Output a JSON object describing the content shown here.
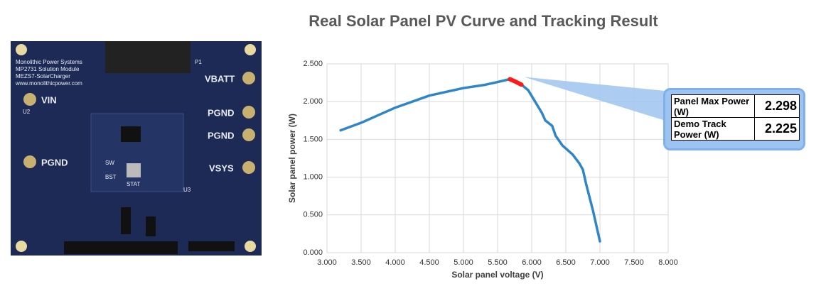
{
  "board_labels": [
    "Monolithic Power Systems",
    "MP2731 Solution Module",
    "MEZS7-SolarCharger",
    "www.monolithicpower.com",
    "VIN",
    "PGND",
    "VBATT",
    "PGND",
    "PGND",
    "VSYS",
    "P1",
    "U2",
    "U3",
    "STAT",
    "SW",
    "BST"
  ],
  "chart_data": {
    "type": "line",
    "title": "Real Solar Panel PV Curve and Tracking Result",
    "xlabel": "Solar panel voltage (V)",
    "ylabel": "Solar panel power (W)",
    "series": [
      {
        "name": "PV curve",
        "color": "#2e86c8",
        "x": [
          3.2,
          3.5,
          4.0,
          4.5,
          5.0,
          5.3,
          5.5,
          5.68,
          5.85,
          5.95,
          6.05,
          6.15,
          6.2,
          6.3,
          6.35,
          6.45,
          6.6,
          6.7,
          6.75,
          6.8,
          6.9,
          7.0
        ],
        "values": [
          1.62,
          1.72,
          1.92,
          2.08,
          2.18,
          2.22,
          2.26,
          2.298,
          2.225,
          2.15,
          2.0,
          1.85,
          1.75,
          1.68,
          1.55,
          1.42,
          1.3,
          1.18,
          1.1,
          0.9,
          0.55,
          0.15
        ]
      },
      {
        "name": "Tracking",
        "color": "#ff1a1a",
        "x": [
          5.68,
          5.75,
          5.85
        ],
        "values": [
          2.298,
          2.27,
          2.225
        ]
      }
    ],
    "xlim": [
      3,
      8
    ],
    "xticks": [
      {
        "value": 3,
        "label": "3.000"
      },
      {
        "value": 3.5,
        "label": "3.500"
      },
      {
        "value": 4,
        "label": "4.000"
      },
      {
        "value": 4.5,
        "label": "4.500"
      },
      {
        "value": 5,
        "label": "5.000"
      },
      {
        "value": 5.5,
        "label": "5.500"
      },
      {
        "value": 6,
        "label": "6.000"
      },
      {
        "value": 6.5,
        "label": "6.500"
      },
      {
        "value": 7,
        "label": "7.000"
      },
      {
        "value": 7.5,
        "label": "7.500"
      },
      {
        "value": 8,
        "label": "8.000"
      }
    ],
    "ylim": [
      0,
      2.5
    ],
    "yticks": [
      {
        "value": 0,
        "label": "0.000"
      },
      {
        "value": 0.5,
        "label": "0.500"
      },
      {
        "value": 1,
        "label": "1.000"
      },
      {
        "value": 1.5,
        "label": "1.500"
      },
      {
        "value": 2,
        "label": "2.000"
      },
      {
        "value": 2.5,
        "label": "2.500"
      }
    ],
    "grid": true,
    "annotations": [
      {
        "label": "Panel Max Power (W)",
        "value": 2.298
      },
      {
        "label": "Demo Track Power (W)",
        "value": 2.225
      }
    ]
  }
}
